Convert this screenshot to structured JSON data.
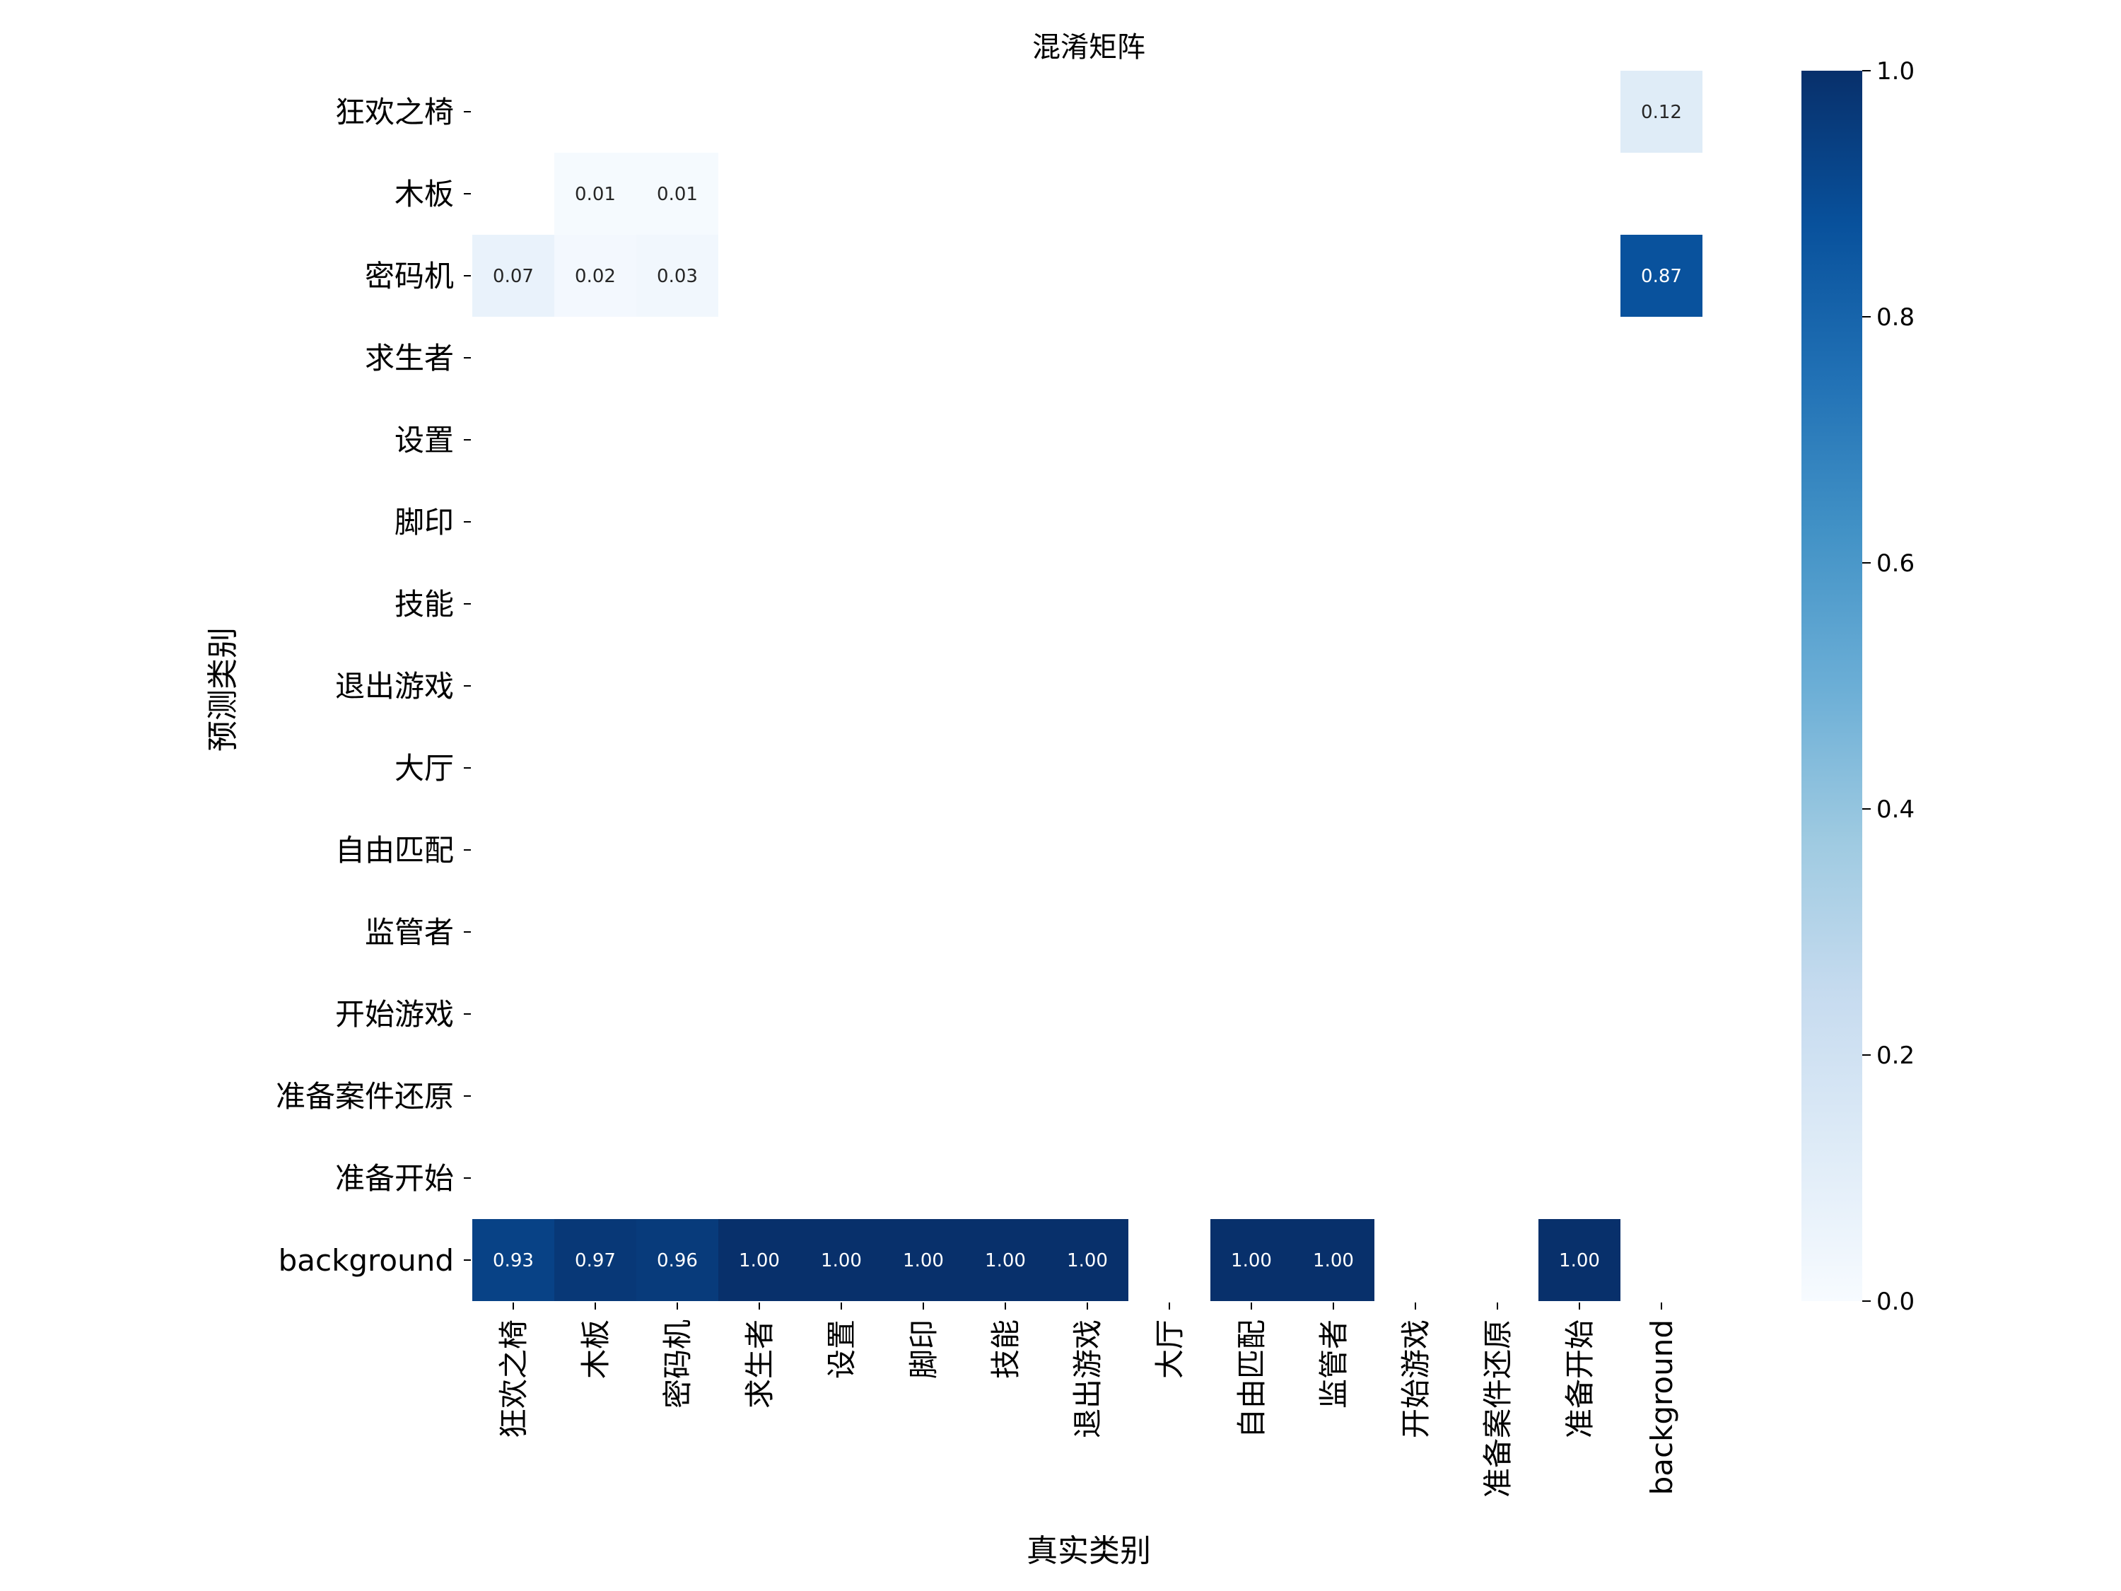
{
  "chart_data": {
    "type": "heatmap",
    "title": "混淆矩阵",
    "xlabel": "真实类别",
    "ylabel": "预测类别",
    "x_categories": [
      "狂欢之椅",
      "木板",
      "密码机",
      "求生者",
      "设置",
      "脚印",
      "技能",
      "退出游戏",
      "大厅",
      "自由匹配",
      "监管者",
      "开始游戏",
      "准备案件还原",
      "准备开始",
      "background"
    ],
    "y_categories": [
      "狂欢之椅",
      "木板",
      "密码机",
      "求生者",
      "设置",
      "脚印",
      "技能",
      "退出游戏",
      "大厅",
      "自由匹配",
      "监管者",
      "开始游戏",
      "准备案件还原",
      "准备开始",
      "background"
    ],
    "cells": [
      {
        "row": 0,
        "col": 14,
        "value": 0.12,
        "label": "0.12"
      },
      {
        "row": 1,
        "col": 1,
        "value": 0.01,
        "label": "0.01"
      },
      {
        "row": 1,
        "col": 2,
        "value": 0.01,
        "label": "0.01"
      },
      {
        "row": 2,
        "col": 0,
        "value": 0.07,
        "label": "0.07"
      },
      {
        "row": 2,
        "col": 1,
        "value": 0.02,
        "label": "0.02"
      },
      {
        "row": 2,
        "col": 2,
        "value": 0.03,
        "label": "0.03"
      },
      {
        "row": 2,
        "col": 14,
        "value": 0.87,
        "label": "0.87"
      },
      {
        "row": 14,
        "col": 0,
        "value": 0.93,
        "label": "0.93"
      },
      {
        "row": 14,
        "col": 1,
        "value": 0.97,
        "label": "0.97"
      },
      {
        "row": 14,
        "col": 2,
        "value": 0.96,
        "label": "0.96"
      },
      {
        "row": 14,
        "col": 3,
        "value": 1.0,
        "label": "1.00"
      },
      {
        "row": 14,
        "col": 4,
        "value": 1.0,
        "label": "1.00"
      },
      {
        "row": 14,
        "col": 5,
        "value": 1.0,
        "label": "1.00"
      },
      {
        "row": 14,
        "col": 6,
        "value": 1.0,
        "label": "1.00"
      },
      {
        "row": 14,
        "col": 7,
        "value": 1.0,
        "label": "1.00"
      },
      {
        "row": 14,
        "col": 9,
        "value": 1.0,
        "label": "1.00"
      },
      {
        "row": 14,
        "col": 10,
        "value": 1.0,
        "label": "1.00"
      },
      {
        "row": 14,
        "col": 13,
        "value": 1.0,
        "label": "1.00"
      }
    ],
    "colorbar": {
      "range": [
        0,
        1
      ],
      "ticks": [
        "0.0",
        "0.2",
        "0.4",
        "0.6",
        "0.8",
        "1.0"
      ],
      "colormap": "Blues",
      "low_color": "#f7fbff",
      "high_color": "#08306b"
    },
    "grid": false,
    "empty_cells_hidden": true
  }
}
